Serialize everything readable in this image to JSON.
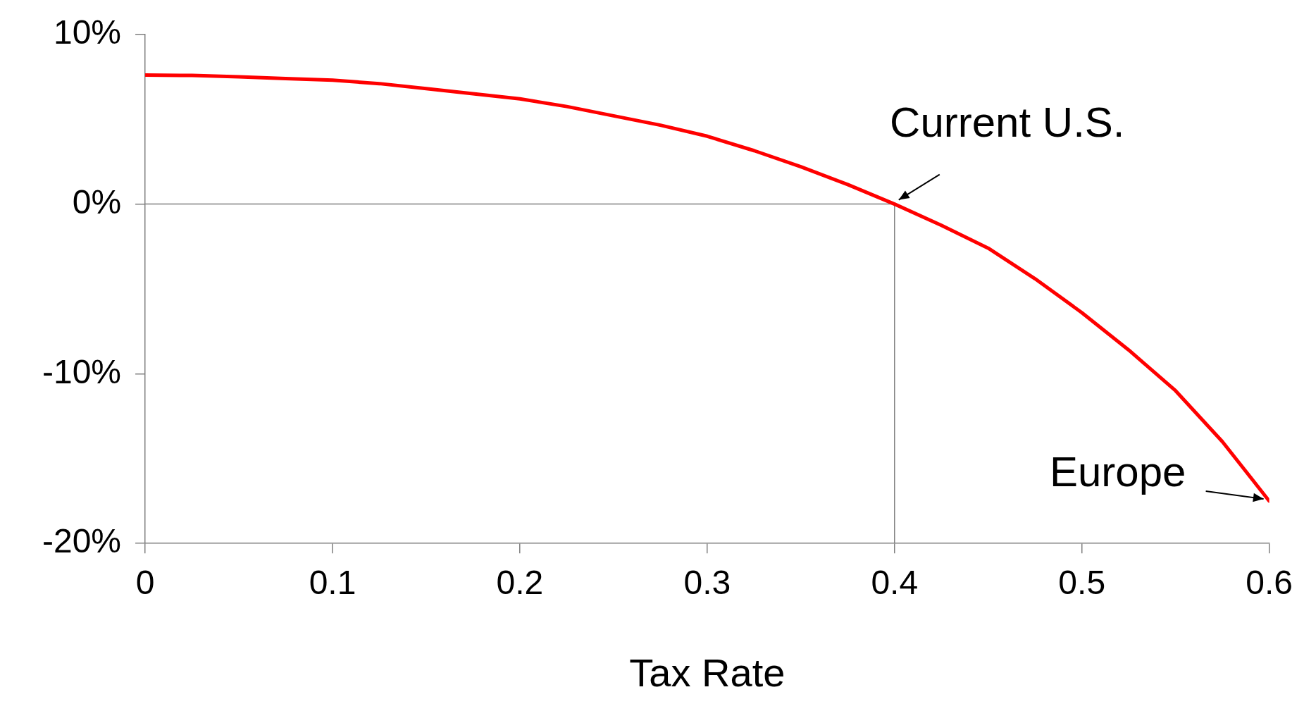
{
  "chart_data": {
    "type": "line",
    "xlabel": "Tax Rate",
    "x": [
      0,
      0.025,
      0.05,
      0.075,
      0.1,
      0.125,
      0.15,
      0.175,
      0.2,
      0.225,
      0.25,
      0.275,
      0.3,
      0.325,
      0.35,
      0.375,
      0.4,
      0.425,
      0.45,
      0.475,
      0.5,
      0.525,
      0.55,
      0.575,
      0.6
    ],
    "values": [
      7.6,
      7.58,
      7.5,
      7.4,
      7.3,
      7.1,
      6.8,
      6.5,
      6.2,
      5.75,
      5.2,
      4.65,
      4.0,
      3.15,
      2.2,
      1.15,
      0,
      -1.25,
      -2.6,
      -4.4,
      -6.4,
      -8.6,
      -11.0,
      -14.0,
      -17.5
    ],
    "color": "#ff0000",
    "marker": "none",
    "grid": false,
    "legend": false,
    "xlim": [
      0,
      0.6
    ],
    "xticks": [
      0,
      0.1,
      0.2,
      0.3,
      0.4,
      0.5,
      0.6
    ],
    "ylim": [
      -20,
      10
    ],
    "yticks": [
      {
        "value": -20,
        "label": "-20%"
      },
      {
        "value": -10,
        "label": "-10%"
      },
      {
        "value": 0,
        "label": "0%"
      },
      {
        "value": 10,
        "label": "10%"
      }
    ],
    "ref_lines": [
      {
        "axis": "y",
        "value": 0,
        "color": "#808080"
      },
      {
        "axis": "x",
        "value": 0.4,
        "color": "#808080"
      }
    ],
    "annotations": [
      {
        "text": "Current U.S.",
        "x": 0.4,
        "y": 0
      },
      {
        "text": "Europe",
        "x": 0.6,
        "y": -17.5
      }
    ]
  }
}
